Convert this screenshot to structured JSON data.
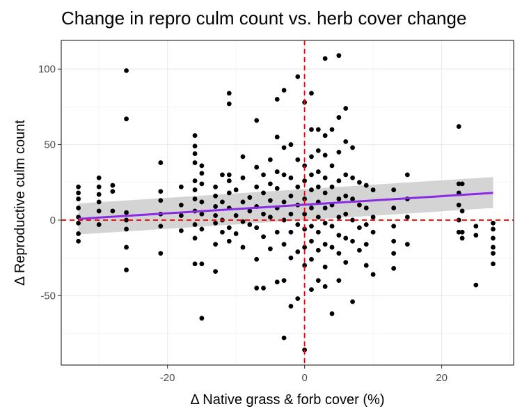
{
  "chart_data": {
    "type": "scatter",
    "title": "Change in repro culm count vs. herb cover change",
    "xlabel": "Δ Native grass & forb cover (%)",
    "ylabel": "Δ Reproductive culm count",
    "xlim": [
      -35.5,
      30.5
    ],
    "ylim": [
      -96,
      119
    ],
    "x_ticks": [
      -20,
      0,
      20
    ],
    "y_ticks": [
      -50,
      0,
      50,
      100
    ],
    "grid": true,
    "reference_lines": {
      "x": 0,
      "y": 0,
      "color": "#ff0000",
      "style": "dashed"
    },
    "trend": {
      "x": [
        -33,
        27.5
      ],
      "y": [
        0.8,
        18
      ],
      "ci_lower": [
        -9.5,
        8
      ],
      "ci_upper": [
        11,
        28.5
      ],
      "line_color": "#8a2be2",
      "band_color": "#cccccc"
    },
    "point_color": "#000000",
    "points": [
      [
        -26,
        99
      ],
      [
        -26,
        67
      ],
      [
        -33,
        22
      ],
      [
        -33,
        18
      ],
      [
        -33,
        14
      ],
      [
        -33,
        8
      ],
      [
        -33,
        2
      ],
      [
        -33,
        -2
      ],
      [
        -33,
        -9
      ],
      [
        -33,
        -14
      ],
      [
        -30,
        28
      ],
      [
        -30,
        22
      ],
      [
        -30,
        17
      ],
      [
        -30,
        12
      ],
      [
        -30,
        6
      ],
      [
        -30,
        -3
      ],
      [
        -28,
        23
      ],
      [
        -28,
        19
      ],
      [
        -28,
        6
      ],
      [
        -26,
        5
      ],
      [
        -26,
        0
      ],
      [
        -26,
        -6
      ],
      [
        -26,
        -18
      ],
      [
        -26,
        -33
      ],
      [
        -21,
        38
      ],
      [
        -21,
        19
      ],
      [
        -21,
        13
      ],
      [
        -21,
        4
      ],
      [
        -21,
        -4
      ],
      [
        -21,
        -22
      ],
      [
        -18,
        22
      ],
      [
        -18,
        10
      ],
      [
        -18,
        3
      ],
      [
        -18,
        -7
      ],
      [
        -16,
        56
      ],
      [
        -16,
        49
      ],
      [
        -16,
        44
      ],
      [
        -16,
        38
      ],
      [
        -16,
        26
      ],
      [
        -16,
        20
      ],
      [
        -16,
        14
      ],
      [
        -16,
        6
      ],
      [
        -16,
        -3
      ],
      [
        -16,
        -12
      ],
      [
        -16,
        -29
      ],
      [
        -15,
        36
      ],
      [
        -15,
        31
      ],
      [
        -15,
        24
      ],
      [
        -15,
        12
      ],
      [
        -15,
        4
      ],
      [
        -15,
        -6
      ],
      [
        -15,
        -29
      ],
      [
        -15,
        -65
      ],
      [
        -13,
        22
      ],
      [
        -13,
        16
      ],
      [
        -13,
        9
      ],
      [
        -13,
        3
      ],
      [
        -13,
        -2
      ],
      [
        -13,
        -16
      ],
      [
        -13,
        -34
      ],
      [
        -12,
        30
      ],
      [
        -12,
        12
      ],
      [
        -12,
        0
      ],
      [
        -12,
        -8
      ],
      [
        -11,
        84
      ],
      [
        -11,
        77
      ],
      [
        -11,
        30
      ],
      [
        -11,
        26
      ],
      [
        -11,
        18
      ],
      [
        -11,
        8
      ],
      [
        -11,
        -5
      ],
      [
        -11,
        -14
      ],
      [
        -10,
        20
      ],
      [
        -10,
        3
      ],
      [
        -10,
        -9
      ],
      [
        -9,
        42
      ],
      [
        -9,
        28
      ],
      [
        -9,
        12
      ],
      [
        -9,
        -1
      ],
      [
        -9,
        -18
      ],
      [
        -8,
        15
      ],
      [
        -8,
        6
      ],
      [
        -8,
        -3
      ],
      [
        -7,
        66
      ],
      [
        -7,
        35
      ],
      [
        -7,
        22
      ],
      [
        -7,
        9
      ],
      [
        -7,
        -5
      ],
      [
        -7,
        -26
      ],
      [
        -7,
        -45
      ],
      [
        -6,
        30
      ],
      [
        -6,
        18
      ],
      [
        -6,
        4
      ],
      [
        -6,
        -11
      ],
      [
        -6,
        -45
      ],
      [
        -5,
        40
      ],
      [
        -5,
        24
      ],
      [
        -5,
        13
      ],
      [
        -5,
        2
      ],
      [
        -5,
        -19
      ],
      [
        -4,
        80
      ],
      [
        -4,
        55
      ],
      [
        -4,
        32
      ],
      [
        -4,
        21
      ],
      [
        -4,
        8
      ],
      [
        -4,
        -8
      ],
      [
        -4,
        -41
      ],
      [
        -3,
        86
      ],
      [
        -3,
        48
      ],
      [
        -3,
        30
      ],
      [
        -3,
        12
      ],
      [
        -3,
        0
      ],
      [
        -3,
        -16
      ],
      [
        -3,
        -40
      ],
      [
        -3,
        -78
      ],
      [
        -2,
        50
      ],
      [
        -2,
        28
      ],
      [
        -2,
        16
      ],
      [
        -2,
        4
      ],
      [
        -2,
        -8
      ],
      [
        -2,
        -25
      ],
      [
        -2,
        -57
      ],
      [
        -1,
        95
      ],
      [
        -1,
        40
      ],
      [
        -1,
        22
      ],
      [
        -1,
        10
      ],
      [
        -1,
        -3
      ],
      [
        -1,
        -21
      ],
      [
        -1,
        -52
      ],
      [
        0,
        78
      ],
      [
        0,
        36
      ],
      [
        0,
        26
      ],
      [
        0,
        14
      ],
      [
        0,
        4
      ],
      [
        0,
        -6
      ],
      [
        0,
        -18
      ],
      [
        0,
        -30
      ],
      [
        0,
        -86
      ],
      [
        1,
        84
      ],
      [
        1,
        60
      ],
      [
        1,
        42
      ],
      [
        1,
        30
      ],
      [
        1,
        20
      ],
      [
        1,
        8
      ],
      [
        1,
        -4
      ],
      [
        1,
        -14
      ],
      [
        1,
        -26
      ],
      [
        1,
        -46
      ],
      [
        2,
        60
      ],
      [
        2,
        46
      ],
      [
        2,
        32
      ],
      [
        2,
        22
      ],
      [
        2,
        12
      ],
      [
        2,
        2
      ],
      [
        2,
        -8
      ],
      [
        2,
        -20
      ],
      [
        2,
        -40
      ],
      [
        3,
        107
      ],
      [
        3,
        56
      ],
      [
        3,
        43
      ],
      [
        3,
        28
      ],
      [
        3,
        18
      ],
      [
        3,
        8
      ],
      [
        3,
        -2
      ],
      [
        3,
        -16
      ],
      [
        3,
        -31
      ],
      [
        3,
        -44
      ],
      [
        4,
        60
      ],
      [
        4,
        36
      ],
      [
        4,
        22
      ],
      [
        4,
        10
      ],
      [
        4,
        -4
      ],
      [
        4,
        -18
      ],
      [
        4,
        -62
      ],
      [
        5,
        109
      ],
      [
        5,
        68
      ],
      [
        5,
        45
      ],
      [
        5,
        26
      ],
      [
        5,
        14
      ],
      [
        5,
        2
      ],
      [
        5,
        -10
      ],
      [
        5,
        -22
      ],
      [
        5,
        -40
      ],
      [
        6,
        74
      ],
      [
        6,
        52
      ],
      [
        6,
        30
      ],
      [
        6,
        16
      ],
      [
        6,
        4
      ],
      [
        6,
        -12
      ],
      [
        6,
        -28
      ],
      [
        7,
        48
      ],
      [
        7,
        28
      ],
      [
        7,
        14
      ],
      [
        7,
        0
      ],
      [
        7,
        -14
      ],
      [
        7,
        -54
      ],
      [
        8,
        25
      ],
      [
        8,
        10
      ],
      [
        8,
        -5
      ],
      [
        8,
        -20
      ],
      [
        9,
        23
      ],
      [
        9,
        8
      ],
      [
        9,
        -3
      ],
      [
        9,
        -16
      ],
      [
        9,
        -30
      ],
      [
        10,
        20
      ],
      [
        10,
        2
      ],
      [
        10,
        -8
      ],
      [
        10,
        -36
      ],
      [
        13,
        20
      ],
      [
        13,
        8
      ],
      [
        13,
        -4
      ],
      [
        13,
        -14
      ],
      [
        13,
        -22
      ],
      [
        13,
        -32
      ],
      [
        15,
        30
      ],
      [
        15,
        14
      ],
      [
        15,
        2
      ],
      [
        15,
        -16
      ],
      [
        22.5,
        62
      ],
      [
        22.5,
        24
      ],
      [
        22.5,
        18
      ],
      [
        22.5,
        10
      ],
      [
        22.5,
        0
      ],
      [
        22.5,
        -8
      ],
      [
        23,
        24
      ],
      [
        23,
        6
      ],
      [
        23,
        -8
      ],
      [
        23,
        -12
      ],
      [
        25,
        -43
      ],
      [
        25,
        -4
      ],
      [
        25,
        -10
      ],
      [
        27.5,
        -2
      ],
      [
        27.5,
        -6
      ],
      [
        27.5,
        -12
      ],
      [
        27.5,
        -18
      ],
      [
        27.5,
        -22
      ],
      [
        27.5,
        -29
      ]
    ]
  }
}
